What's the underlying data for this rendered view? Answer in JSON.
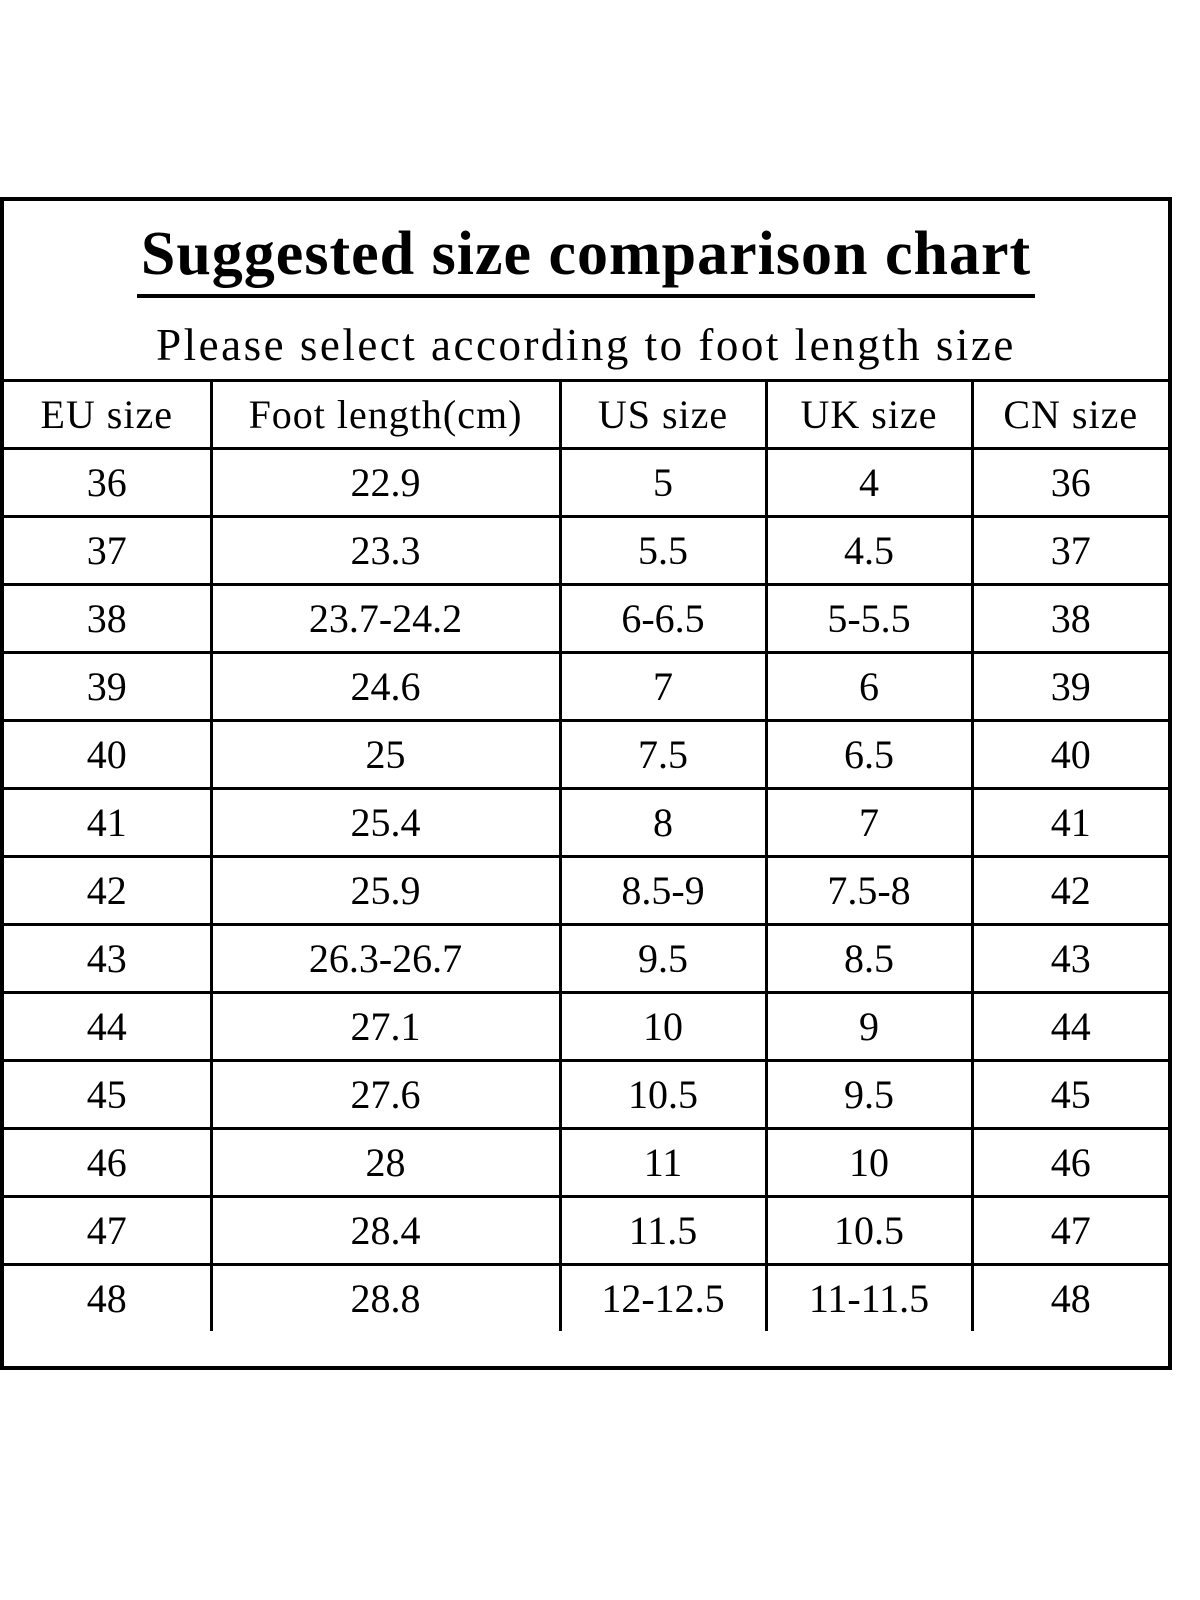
{
  "title": "Suggested size comparison chart",
  "subtitle": "Please select according to foot length size",
  "headers": [
    "EU size",
    "Foot length(cm)",
    "US size",
    "UK size",
    "CN size"
  ],
  "rows": [
    [
      "36",
      "22.9",
      "5",
      "4",
      "36"
    ],
    [
      "37",
      "23.3",
      "5.5",
      "4.5",
      "37"
    ],
    [
      "38",
      "23.7-24.2",
      "6-6.5",
      "5-5.5",
      "38"
    ],
    [
      "39",
      "24.6",
      "7",
      "6",
      "39"
    ],
    [
      "40",
      "25",
      "7.5",
      "6.5",
      "40"
    ],
    [
      "41",
      "25.4",
      "8",
      "7",
      "41"
    ],
    [
      "42",
      "25.9",
      "8.5-9",
      "7.5-8",
      "42"
    ],
    [
      "43",
      "26.3-26.7",
      "9.5",
      "8.5",
      "43"
    ],
    [
      "44",
      "27.1",
      "10",
      "9",
      "44"
    ],
    [
      "45",
      "27.6",
      "10.5",
      "9.5",
      "45"
    ],
    [
      "46",
      "28",
      "11",
      "10",
      "46"
    ],
    [
      "47",
      "28.4",
      "11.5",
      "10.5",
      "47"
    ],
    [
      "48",
      "28.8",
      "12-12.5",
      "11-11.5",
      "48"
    ]
  ]
}
